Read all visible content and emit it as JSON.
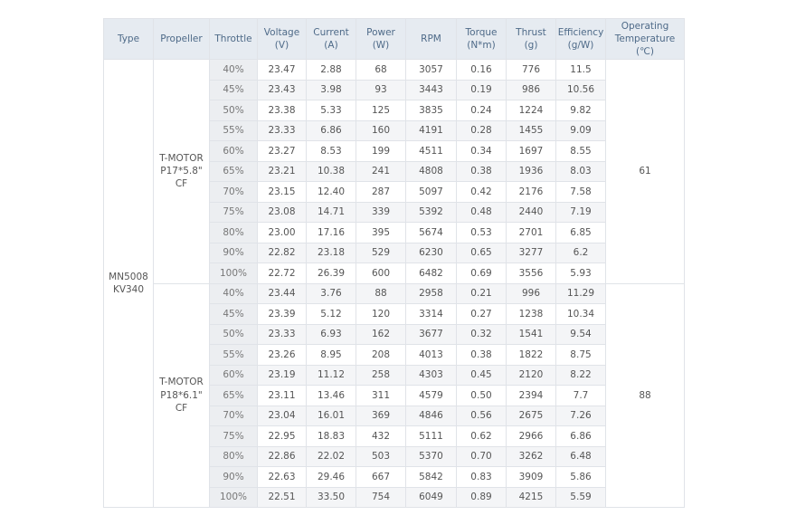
{
  "table": {
    "headers": [
      "Type",
      "Propeller",
      "Throttle",
      "Voltage\n(V)",
      "Current\n(A)",
      "Power\n(W)",
      "RPM",
      "Torque\n(N*m)",
      "Thrust\n(g)",
      "Efficiency\n(g/W)",
      "Operating\nTemperature\n(℃)"
    ],
    "type": "MN5008\nKV340",
    "groups": [
      {
        "propeller": "T-MOTOR\nP17*5.8\" CF",
        "temperature": "61",
        "rows": [
          [
            "40%",
            "23.47",
            "2.88",
            "68",
            "3057",
            "0.16",
            "776",
            "11.5"
          ],
          [
            "45%",
            "23.43",
            "3.98",
            "93",
            "3443",
            "0.19",
            "986",
            "10.56"
          ],
          [
            "50%",
            "23.38",
            "5.33",
            "125",
            "3835",
            "0.24",
            "1224",
            "9.82"
          ],
          [
            "55%",
            "23.33",
            "6.86",
            "160",
            "4191",
            "0.28",
            "1455",
            "9.09"
          ],
          [
            "60%",
            "23.27",
            "8.53",
            "199",
            "4511",
            "0.34",
            "1697",
            "8.55"
          ],
          [
            "65%",
            "23.21",
            "10.38",
            "241",
            "4808",
            "0.38",
            "1936",
            "8.03"
          ],
          [
            "70%",
            "23.15",
            "12.40",
            "287",
            "5097",
            "0.42",
            "2176",
            "7.58"
          ],
          [
            "75%",
            "23.08",
            "14.71",
            "339",
            "5392",
            "0.48",
            "2440",
            "7.19"
          ],
          [
            "80%",
            "23.00",
            "17.16",
            "395",
            "5674",
            "0.53",
            "2701",
            "6.85"
          ],
          [
            "90%",
            "22.82",
            "23.18",
            "529",
            "6230",
            "0.65",
            "3277",
            "6.2"
          ],
          [
            "100%",
            "22.72",
            "26.39",
            "600",
            "6482",
            "0.69",
            "3556",
            "5.93"
          ]
        ]
      },
      {
        "propeller": "T-MOTOR\nP18*6.1\" CF",
        "temperature": "88",
        "rows": [
          [
            "40%",
            "23.44",
            "3.76",
            "88",
            "2958",
            "0.21",
            "996",
            "11.29"
          ],
          [
            "45%",
            "23.39",
            "5.12",
            "120",
            "3314",
            "0.27",
            "1238",
            "10.34"
          ],
          [
            "50%",
            "23.33",
            "6.93",
            "162",
            "3677",
            "0.32",
            "1541",
            "9.54"
          ],
          [
            "55%",
            "23.26",
            "8.95",
            "208",
            "4013",
            "0.38",
            "1822",
            "8.75"
          ],
          [
            "60%",
            "23.19",
            "11.12",
            "258",
            "4303",
            "0.45",
            "2120",
            "8.22"
          ],
          [
            "65%",
            "23.11",
            "13.46",
            "311",
            "4579",
            "0.50",
            "2394",
            "7.7"
          ],
          [
            "70%",
            "23.04",
            "16.01",
            "369",
            "4846",
            "0.56",
            "2675",
            "7.26"
          ],
          [
            "75%",
            "22.95",
            "18.83",
            "432",
            "5111",
            "0.62",
            "2966",
            "6.86"
          ],
          [
            "80%",
            "22.86",
            "22.02",
            "503",
            "5370",
            "0.70",
            "3262",
            "6.48"
          ],
          [
            "90%",
            "22.63",
            "29.46",
            "667",
            "5842",
            "0.83",
            "3909",
            "5.86"
          ],
          [
            "100%",
            "22.51",
            "33.50",
            "754",
            "6049",
            "0.89",
            "4215",
            "5.59"
          ]
        ]
      }
    ]
  }
}
